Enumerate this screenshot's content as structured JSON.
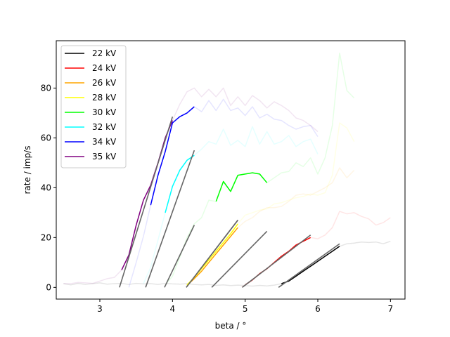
{
  "chart_data": {
    "type": "line",
    "xlabel": "beta / °",
    "ylabel": "rate / imp/s",
    "xlim": [
      2.4,
      7.2
    ],
    "ylim": [
      -4.7,
      99
    ],
    "xticks": [
      3,
      4,
      5,
      6,
      7
    ],
    "yticks": [
      0,
      20,
      40,
      60,
      80
    ],
    "grid": false,
    "legend_placement": "top-left",
    "fit_color": "#666666",
    "series": [
      {
        "name": "22 kV",
        "color": "#000000",
        "x": [
          2.5,
          2.6,
          2.7,
          2.8,
          2.9,
          3.0,
          3.1,
          3.2,
          3.3,
          3.4,
          3.5,
          3.6,
          3.7,
          3.8,
          3.9,
          4.0,
          4.1,
          4.2,
          4.3,
          4.4,
          4.5,
          4.6,
          4.7,
          4.8,
          4.9,
          5.0,
          5.1,
          5.2,
          5.3,
          5.4,
          5.5,
          5.6,
          5.7,
          5.8,
          5.9,
          6.0,
          6.1,
          6.2,
          6.3,
          6.4,
          6.5,
          6.6,
          6.7,
          6.8,
          6.9,
          7.0
        ],
        "y": [
          1.5,
          1.0,
          1.6,
          1.2,
          1.5,
          1.8,
          1.3,
          1.5,
          1.6,
          1.2,
          1.6,
          1.4,
          1.5,
          1.2,
          1.6,
          1.4,
          1.3,
          1.5,
          1.2,
          1.0,
          1.2,
          0.8,
          1.0,
          0.7,
          0.9,
          0.7,
          0.5,
          0.8,
          0.6,
          0.9,
          1.5,
          2.5,
          4.5,
          6.5,
          8.5,
          10.5,
          12.5,
          14.5,
          16.5,
          17.5,
          17.8,
          18.2,
          18.0,
          18.2,
          17.5,
          18.5
        ],
        "fit_x": [
          5.46,
          6.3
        ],
        "fit_y": [
          0,
          17.5
        ]
      },
      {
        "name": "24 kV",
        "color": "#ff0000",
        "x": [
          4.95,
          5.0,
          5.1,
          5.2,
          5.3,
          5.4,
          5.5,
          5.6,
          5.7,
          5.8,
          5.9,
          6.0,
          6.1,
          6.2,
          6.3,
          6.4,
          6.5,
          6.6,
          6.7,
          6.8,
          6.9,
          7.0
        ],
        "y": [
          0.2,
          1.0,
          3.0,
          5.5,
          7.5,
          10.0,
          12.5,
          14.5,
          17.0,
          18.5,
          20.0,
          19.5,
          21.0,
          24.0,
          30.5,
          29.5,
          30.0,
          28.5,
          27.5,
          25.0,
          26.0,
          28.0
        ],
        "fit_x": [
          4.96,
          5.9
        ],
        "fit_y": [
          0,
          21.0
        ]
      },
      {
        "name": "26 kV",
        "color": "#ffa500",
        "x": [
          4.2,
          4.3,
          4.4,
          4.5,
          4.6,
          4.7,
          4.8,
          4.9,
          5.0,
          5.1,
          5.2,
          5.3,
          5.4,
          5.5,
          5.6,
          5.7,
          5.8,
          5.9,
          6.0,
          6.1,
          6.2,
          6.3,
          6.4,
          6.5
        ],
        "y": [
          0.8,
          3.5,
          6.5,
          10.0,
          13.5,
          17.0,
          20.5,
          24.0,
          26.5,
          28.0,
          30.5,
          32.0,
          32.0,
          32.5,
          34.5,
          37.0,
          37.5,
          37.0,
          38.5,
          40.0,
          42.0,
          48.0,
          44.0,
          47.0
        ],
        "fit_x": [
          4.19,
          4.9
        ],
        "fit_y": [
          0,
          27.0
        ]
      },
      {
        "name": "28 kV",
        "color": "#ffff00",
        "x": [
          4.2,
          4.3,
          4.4,
          4.5,
          4.6,
          4.7,
          4.8,
          4.9,
          5.0,
          5.1,
          5.2,
          5.3,
          5.4,
          5.5,
          5.6,
          5.7,
          5.8,
          5.9,
          6.0,
          6.1,
          6.2,
          6.3,
          6.4,
          6.5
        ],
        "y": [
          1.0,
          4.0,
          7.5,
          11.0,
          14.5,
          18.0,
          21.5,
          25.5,
          29.0,
          30.0,
          31.0,
          31.5,
          33.5,
          34.0,
          35.0,
          36.0,
          36.5,
          37.5,
          37.0,
          38.0,
          45.0,
          66.0,
          64.0,
          58.5
        ],
        "fit_x": [
          4.19,
          4.9
        ],
        "fit_y": [
          0,
          27.0
        ]
      },
      {
        "name": "30 kV",
        "color": "#00ff00",
        "x": [
          3.9,
          4.0,
          4.1,
          4.2,
          4.3,
          4.4,
          4.5,
          4.6,
          4.7,
          4.8,
          4.9,
          5.0,
          5.1,
          5.2,
          5.3,
          5.4,
          5.5,
          5.6,
          5.7,
          5.8,
          5.9,
          6.0,
          6.1,
          6.2,
          6.3,
          6.4,
          6.5
        ],
        "y": [
          1.0,
          4.5,
          12.0,
          20.0,
          25.5,
          28.0,
          35.0,
          34.5,
          42.5,
          38.5,
          45.0,
          45.5,
          46.0,
          45.5,
          42.0,
          44.0,
          46.0,
          46.5,
          50.0,
          48.5,
          52.0,
          45.5,
          52.0,
          65.0,
          94.0,
          79.0,
          76.0
        ],
        "fit_x": [
          4.54,
          5.3
        ],
        "fit_y": [
          0,
          22.5
        ]
      },
      {
        "name": "32 kV",
        "color": "#00ffff",
        "x": [
          3.6,
          3.7,
          3.8,
          3.9,
          4.0,
          4.1,
          4.2,
          4.3,
          4.4,
          4.5,
          4.6,
          4.7,
          4.8,
          4.9,
          5.0,
          5.1,
          5.2,
          5.3,
          5.4,
          5.5,
          5.6,
          5.7,
          5.8,
          5.9,
          6.0
        ],
        "y": [
          1.5,
          8.0,
          19.0,
          30.0,
          40.5,
          47.0,
          51.0,
          53.0,
          55.5,
          58.5,
          57.5,
          63.5,
          57.0,
          59.0,
          56.5,
          64.5,
          57.5,
          62.5,
          57.5,
          58.5,
          61.0,
          56.5,
          58.5,
          59.5,
          53.5
        ],
        "fit_x": [
          3.89,
          4.3
        ],
        "fit_y": [
          0,
          25.0
        ]
      },
      {
        "name": "34 kV",
        "color": "#0000ff",
        "x": [
          3.4,
          3.5,
          3.6,
          3.7,
          3.8,
          3.9,
          4.0,
          4.1,
          4.2,
          4.3,
          4.4,
          4.5,
          4.6,
          4.7,
          4.8,
          4.9,
          5.0,
          5.1,
          5.2,
          5.3,
          5.4,
          5.5,
          5.6,
          5.7,
          5.8,
          5.9,
          6.0
        ],
        "y": [
          0.0,
          10.0,
          20.5,
          33.0,
          45.0,
          54.5,
          66.0,
          68.5,
          70.0,
          72.5,
          70.5,
          75.0,
          71.0,
          75.5,
          71.0,
          72.0,
          69.0,
          72.5,
          68.0,
          69.5,
          67.5,
          67.0,
          65.0,
          63.5,
          64.5,
          65.0,
          60.5
        ],
        "fit_x": [
          3.63,
          4.3
        ],
        "fit_y": [
          0,
          55.0
        ]
      },
      {
        "name": "35 kV",
        "color": "#800080",
        "x": [
          2.5,
          2.6,
          2.7,
          2.8,
          2.9,
          3.0,
          3.1,
          3.2,
          3.3,
          3.4,
          3.5,
          3.6,
          3.7,
          3.8,
          3.9,
          4.0,
          4.1,
          4.2,
          4.3,
          4.4,
          4.5,
          4.6,
          4.7,
          4.8,
          4.9,
          5.0,
          5.1,
          5.2,
          5.3,
          5.4,
          5.5,
          5.6,
          5.7,
          5.8,
          5.9,
          6.0
        ],
        "y": [
          1.5,
          1.5,
          2.0,
          1.8,
          1.6,
          2.5,
          3.5,
          4.0,
          7.0,
          13.0,
          25.0,
          35.0,
          41.0,
          50.0,
          60.0,
          67.0,
          73.5,
          78.5,
          80.0,
          76.5,
          79.5,
          76.5,
          80.0,
          73.0,
          76.5,
          73.0,
          77.0,
          75.0,
          72.0,
          74.5,
          73.0,
          71.0,
          68.0,
          67.0,
          65.0,
          62.5
        ],
        "fit_x": [
          3.27,
          4.0
        ],
        "fit_y": [
          0,
          68.5
        ]
      }
    ]
  }
}
